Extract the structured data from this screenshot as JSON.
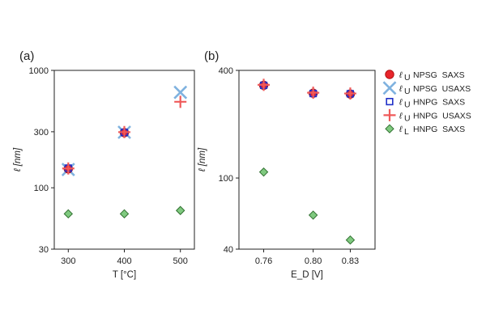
{
  "chart_data": [
    {
      "type": "scatter",
      "panel_label": "(a)",
      "xlabel": "T [°C]",
      "ylabel": "ℓ [nm]",
      "yscale": "log",
      "xlim": [
        275,
        525
      ],
      "ylim": [
        30,
        1000
      ],
      "xticks": [
        300,
        400,
        500
      ],
      "yticks": [
        30,
        100,
        300,
        1000
      ],
      "series": [
        {
          "marker": "circle",
          "values": [
            [
              300,
              145
            ],
            [
              400,
              295
            ]
          ]
        },
        {
          "marker": "x",
          "values": [
            [
              300,
              143
            ],
            [
              400,
              297
            ],
            [
              500,
              650
            ]
          ]
        },
        {
          "marker": "square",
          "values": [
            [
              300,
              147
            ],
            [
              400,
              296
            ]
          ]
        },
        {
          "marker": "plus",
          "values": [
            [
              300,
              146
            ],
            [
              400,
              298
            ],
            [
              500,
              540
            ]
          ]
        },
        {
          "marker": "diamond",
          "values": [
            [
              300,
              60
            ],
            [
              400,
              60
            ],
            [
              500,
              64
            ]
          ]
        }
      ]
    },
    {
      "type": "scatter",
      "panel_label": "(b)",
      "xlabel": "E_D [V]",
      "ylabel": "ℓ [nm]",
      "yscale": "log",
      "xlim": [
        0.74,
        0.85
      ],
      "ylim": [
        40,
        400
      ],
      "xticks": [
        0.76,
        0.8,
        0.83
      ],
      "xtick_labels": [
        "0.76",
        "0.80",
        "0.83"
      ],
      "yticks": [
        40,
        100,
        400
      ],
      "series": [
        {
          "marker": "circle",
          "values": [
            [
              0.76,
              330
            ],
            [
              0.8,
              298
            ],
            [
              0.83,
              295
            ]
          ]
        },
        {
          "marker": "square",
          "values": [
            [
              0.76,
              330
            ],
            [
              0.8,
              297
            ],
            [
              0.83,
              296
            ]
          ]
        },
        {
          "marker": "plus",
          "values": [
            [
              0.76,
              332
            ],
            [
              0.8,
              300
            ],
            [
              0.83,
              297
            ]
          ]
        },
        {
          "marker": "diamond",
          "values": [
            [
              0.76,
              108
            ],
            [
              0.8,
              62
            ],
            [
              0.83,
              45
            ]
          ]
        }
      ]
    }
  ],
  "legend": [
    {
      "marker": "circle",
      "symbol": "ℓ",
      "sub": "U",
      "text": "NPSG  SAXS",
      "color": "#e8252b"
    },
    {
      "marker": "x",
      "symbol": "ℓ",
      "sub": "U",
      "text": "NPSG  USAXS",
      "color": "#7fb2df"
    },
    {
      "marker": "square",
      "symbol": "ℓ",
      "sub": "U",
      "text": "HNPG  SAXS",
      "color": "#2030c8"
    },
    {
      "marker": "plus",
      "symbol": "ℓ",
      "sub": "U",
      "text": "HNPG  USAXS",
      "color": "#ef5a5a"
    },
    {
      "marker": "diamond",
      "symbol": "ℓ",
      "sub": "L",
      "text": "HNPG  SAXS",
      "color": "#2f8a2f"
    }
  ],
  "colors": {
    "circle_fill": "#e8252b",
    "circle_edge": "#b01010",
    "x": "#7fb2df",
    "square": "#2030c8",
    "plus": "#ef5a5a",
    "diamond_fill": "#7fc97f",
    "diamond_edge": "#2f6f2f"
  }
}
